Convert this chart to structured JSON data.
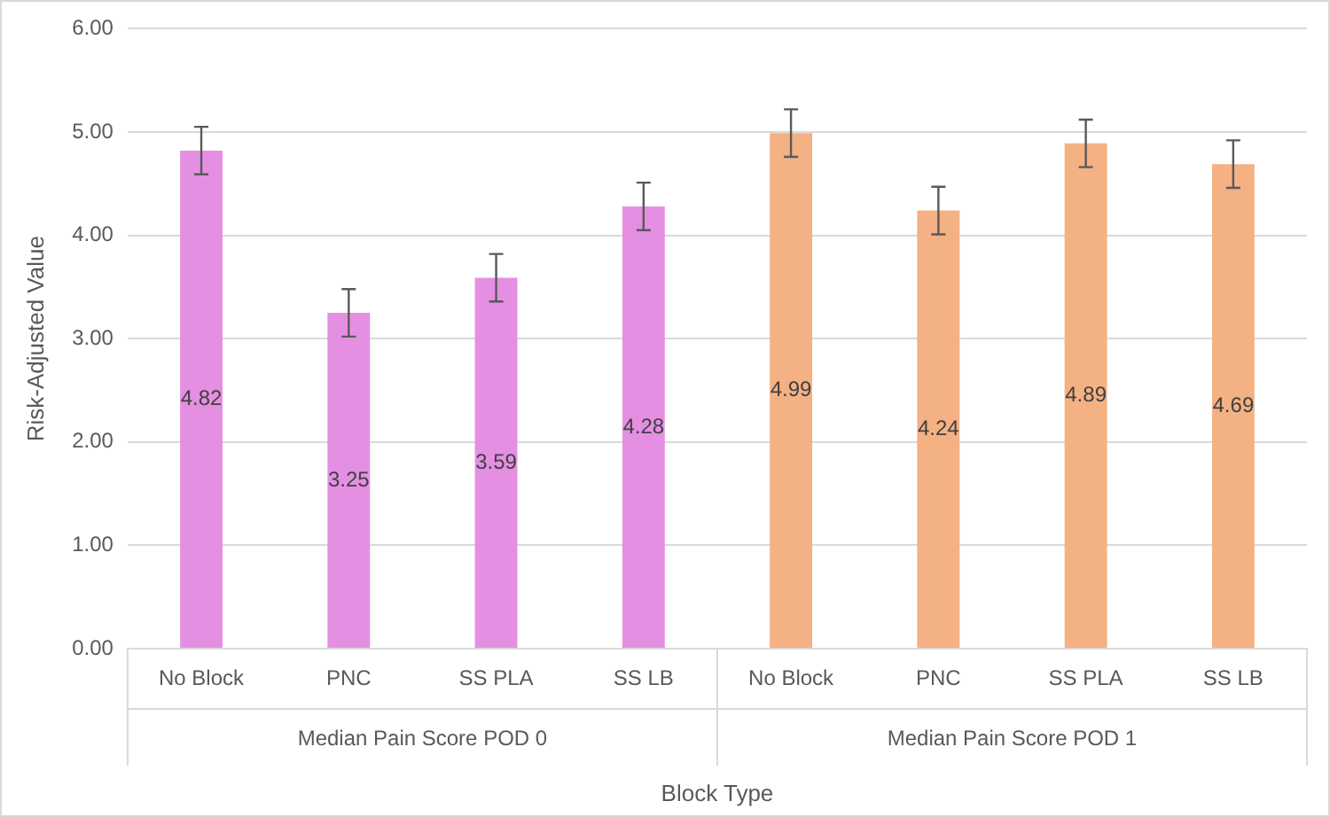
{
  "chart_data": {
    "type": "bar",
    "xlabel": "Block Type",
    "ylabel": "Risk-Adjusted Value",
    "categories": [
      "No Block",
      "PNC",
      "SS PLA",
      "SS LB",
      "No Block",
      "PNC",
      "SS PLA",
      "SS LB"
    ],
    "series": [
      {
        "colors": [
          "#e58fe2",
          "#e58fe2",
          "#e58fe2",
          "#e58fe2",
          "#f4b183",
          "#f4b183",
          "#f4b183",
          "#f4b183"
        ],
        "values": [
          4.82,
          3.25,
          3.59,
          4.28,
          4.99,
          4.24,
          4.89,
          4.69
        ],
        "errors": [
          0.23,
          0.23,
          0.23,
          0.23,
          0.23,
          0.23,
          0.23,
          0.23
        ]
      }
    ],
    "annotations": [
      "Median Pain Score POD 0",
      "Median Pain Score POD 1"
    ],
    "ylim": [
      0,
      6
    ],
    "yticks": [
      {
        "value": 0,
        "label": "0.00"
      },
      {
        "value": 1,
        "label": "1.00"
      },
      {
        "value": 2,
        "label": "2.00"
      },
      {
        "value": 3,
        "label": "3.00"
      },
      {
        "value": 4,
        "label": "4.00"
      },
      {
        "value": 5,
        "label": "5.00"
      },
      {
        "value": 6,
        "label": "6.00"
      }
    ],
    "grid": "y",
    "legend": false,
    "data_labels": true
  }
}
